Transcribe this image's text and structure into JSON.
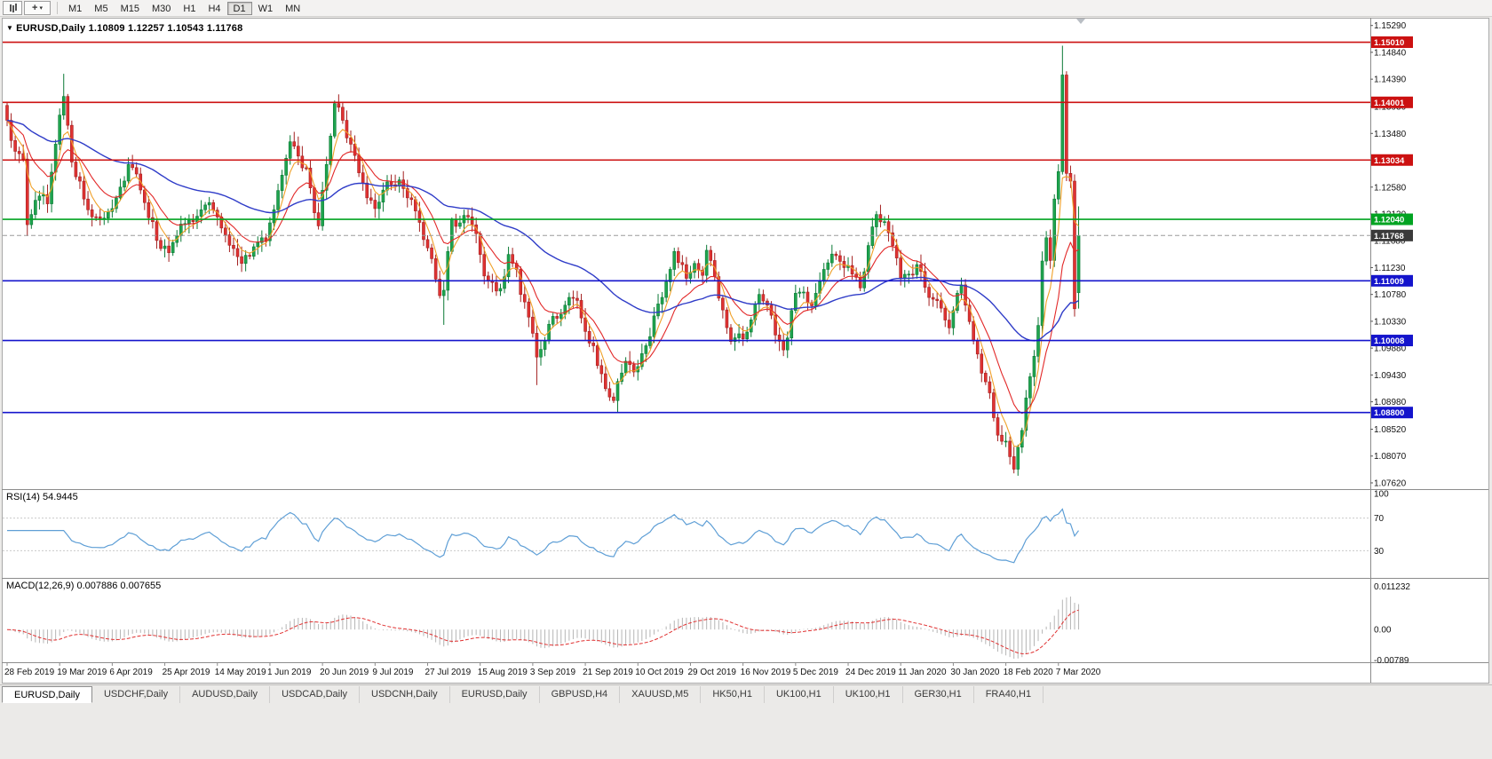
{
  "toolbar": {
    "timeframes": [
      "M1",
      "M5",
      "M15",
      "M30",
      "H1",
      "H4",
      "D1",
      "W1",
      "MN"
    ],
    "active_timeframe": "D1"
  },
  "quote_line": {
    "symbol": "EURUSD,Daily",
    "open": "1.10809",
    "high": "1.12257",
    "low": "1.10543",
    "close": "1.11768",
    "text": "EURUSD,Daily  1.10809 1.12257 1.10543 1.11768"
  },
  "indicators": {
    "rsi": {
      "label": "RSI(14) 54.9445",
      "period": 14,
      "value": "54.9445"
    },
    "macd": {
      "label": "MACD(12,26,9) 0.007886 0.007655",
      "values": "0.007886 0.007655"
    }
  },
  "tabs": {
    "active_index": 0,
    "items": [
      "EURUSD,Daily",
      "USDCHF,Daily",
      "AUDUSD,Daily",
      "USDCAD,Daily",
      "USDCNH,Daily",
      "EURUSD,Daily",
      "GBPUSD,H4",
      "XAUUSD,M5",
      "HK50,H1",
      "UK100,H1",
      "UK100,H1",
      "GER30,H1",
      "FRA40,H1"
    ]
  },
  "chart_data": {
    "type": "candlestick",
    "symbol": "EURUSD",
    "timeframe": "Daily",
    "ohlc_display": {
      "open": 1.10809,
      "high": 1.12257,
      "low": 1.10543,
      "close": 1.11768
    },
    "price_range": [
      1.0756,
      1.1536
    ],
    "price_ticks": [
      "1.15290",
      "1.14840",
      "1.14390",
      "1.13930",
      "1.13480",
      "1.13030",
      "1.12580",
      "1.12130",
      "1.11680",
      "1.11230",
      "1.10780",
      "1.10330",
      "1.09880",
      "1.09430",
      "1.08980",
      "1.08520",
      "1.08070",
      "1.07620"
    ],
    "date_ticks": [
      "28 Feb 2019",
      "19 Mar 2019",
      "6 Apr 2019",
      "25 Apr 2019",
      "14 May 2019",
      "1 Jun 2019",
      "20 Jun 2019",
      "9 Jul 2019",
      "27 Jul 2019",
      "15 Aug 2019",
      "3 Sep 2019",
      "21 Sep 2019",
      "10 Oct 2019",
      "29 Oct 2019",
      "16 Nov 2019",
      "5 Dec 2019",
      "24 Dec 2019",
      "11 Jan 2020",
      "30 Jan 2020",
      "18 Feb 2020",
      "7 Mar 2020"
    ],
    "date_tick_step": 13,
    "candle_count": 266,
    "close_keyframes": [
      [
        0,
        1.137
      ],
      [
        2,
        1.1318
      ],
      [
        4,
        1.1305
      ],
      [
        5,
        1.1195
      ],
      [
        6,
        1.1212
      ],
      [
        8,
        1.1243
      ],
      [
        10,
        1.123
      ],
      [
        12,
        1.133
      ],
      [
        14,
        1.141
      ],
      [
        16,
        1.13
      ],
      [
        18,
        1.1268
      ],
      [
        20,
        1.122
      ],
      [
        23,
        1.1205
      ],
      [
        26,
        1.1222
      ],
      [
        28,
        1.1258
      ],
      [
        30,
        1.1296
      ],
      [
        32,
        1.128
      ],
      [
        34,
        1.1232
      ],
      [
        36,
        1.12
      ],
      [
        38,
        1.1155
      ],
      [
        40,
        1.1148
      ],
      [
        43,
        1.1196
      ],
      [
        46,
        1.12
      ],
      [
        48,
        1.122
      ],
      [
        50,
        1.1232
      ],
      [
        52,
        1.1208
      ],
      [
        54,
        1.1178
      ],
      [
        56,
        1.1155
      ],
      [
        58,
        1.113
      ],
      [
        60,
        1.1142
      ],
      [
        62,
        1.1165
      ],
      [
        64,
        1.1168
      ],
      [
        66,
        1.122
      ],
      [
        68,
        1.1278
      ],
      [
        70,
        1.1334
      ],
      [
        72,
        1.131
      ],
      [
        74,
        1.129
      ],
      [
        76,
        1.1215
      ],
      [
        77,
        1.1193
      ],
      [
        79,
        1.1296
      ],
      [
        81,
        1.1398
      ],
      [
        83,
        1.137
      ],
      [
        85,
        1.133
      ],
      [
        87,
        1.1282
      ],
      [
        89,
        1.124
      ],
      [
        91,
        1.1222
      ],
      [
        93,
        1.1253
      ],
      [
        95,
        1.1262
      ],
      [
        97,
        1.127
      ],
      [
        99,
        1.124
      ],
      [
        101,
        1.1218
      ],
      [
        103,
        1.117
      ],
      [
        105,
        1.1138
      ],
      [
        107,
        1.1076
      ],
      [
        108,
        1.1085
      ],
      [
        109,
        1.115
      ],
      [
        110,
        1.1203
      ],
      [
        112,
        1.1198
      ],
      [
        114,
        1.1208
      ],
      [
        116,
        1.118
      ],
      [
        118,
        1.1109
      ],
      [
        120,
        1.1098
      ],
      [
        122,
        1.1088
      ],
      [
        124,
        1.1145
      ],
      [
        126,
        1.112
      ],
      [
        127,
        1.1078
      ],
      [
        129,
        1.104
      ],
      [
        131,
        1.0973
      ],
      [
        133,
        1.1
      ],
      [
        134,
        1.1028
      ],
      [
        136,
        1.1038
      ],
      [
        138,
        1.106
      ],
      [
        139,
        1.1073
      ],
      [
        141,
        1.1068
      ],
      [
        143,
        1.1016
      ],
      [
        145,
        1.0992
      ],
      [
        147,
        1.0945
      ],
      [
        148,
        1.092
      ],
      [
        150,
        1.09
      ],
      [
        151,
        1.0932
      ],
      [
        153,
        1.0966
      ],
      [
        155,
        1.0948
      ],
      [
        156,
        1.0957
      ],
      [
        158,
        1.0992
      ],
      [
        160,
        1.1042
      ],
      [
        162,
        1.1073
      ],
      [
        164,
        1.112
      ],
      [
        165,
        1.115
      ],
      [
        167,
        1.1128
      ],
      [
        168,
        1.1105
      ],
      [
        170,
        1.113
      ],
      [
        172,
        1.111
      ],
      [
        173,
        1.1152
      ],
      [
        175,
        1.1108
      ],
      [
        177,
        1.1052
      ],
      [
        179,
        1.0999
      ],
      [
        181,
        1.1012
      ],
      [
        183,
        1.1015
      ],
      [
        185,
        1.1062
      ],
      [
        186,
        1.1078
      ],
      [
        188,
        1.106
      ],
      [
        190,
        1.101
      ],
      [
        192,
        1.0985
      ],
      [
        193,
        1.1005
      ],
      [
        195,
        1.108
      ],
      [
        197,
        1.1082
      ],
      [
        199,
        1.1059
      ],
      [
        201,
        1.11
      ],
      [
        203,
        1.1131
      ],
      [
        205,
        1.1143
      ],
      [
        207,
        1.1123
      ],
      [
        209,
        1.1112
      ],
      [
        211,
        1.1089
      ],
      [
        213,
        1.116
      ],
      [
        215,
        1.1212
      ],
      [
        217,
        1.12
      ],
      [
        219,
        1.116
      ],
      [
        221,
        1.1106
      ],
      [
        223,
        1.1112
      ],
      [
        225,
        1.1128
      ],
      [
        227,
        1.109
      ],
      [
        229,
        1.107
      ],
      [
        231,
        1.1055
      ],
      [
        233,
        1.1022
      ],
      [
        235,
        1.108
      ],
      [
        236,
        1.1094
      ],
      [
        237,
        1.106
      ],
      [
        239,
        1.1
      ],
      [
        241,
        1.0946
      ],
      [
        243,
        1.0913
      ],
      [
        245,
        1.0842
      ],
      [
        247,
        1.0832
      ],
      [
        248,
        1.0806
      ],
      [
        249,
        1.0785
      ],
      [
        251,
        1.085
      ],
      [
        253,
        1.094
      ],
      [
        255,
        1.1026
      ],
      [
        256,
        1.1134
      ],
      [
        257,
        1.1173
      ],
      [
        258,
        1.1135
      ],
      [
        259,
        1.1238
      ],
      [
        260,
        1.1284
      ],
      [
        261,
        1.1446
      ],
      [
        262,
        1.1281
      ],
      [
        263,
        1.1268
      ],
      [
        264,
        1.1054
      ],
      [
        265,
        1.11768
      ]
    ],
    "candle_overrides": {
      "5": {
        "l": 1.1176
      },
      "14": {
        "h": 1.1448
      },
      "108": {
        "l": 1.1027
      },
      "131": {
        "l": 1.0926
      },
      "151": {
        "l": 1.0879
      },
      "249": {
        "l": 1.0778
      },
      "261": {
        "h": 1.1495
      },
      "265": {
        "o": 1.10809,
        "h": 1.12257,
        "l": 1.10543,
        "c": 1.11768
      }
    },
    "levels": [
      {
        "price": 1.1501,
        "label": "1.15010",
        "color": "#cc1111",
        "width": 1.6
      },
      {
        "price": 1.14001,
        "label": "1.14001",
        "color": "#cc1111",
        "width": 1.6
      },
      {
        "price": 1.13034,
        "label": "1.13034",
        "color": "#cc1111",
        "width": 1.6
      },
      {
        "price": 1.1204,
        "label": "1.12040",
        "color": "#00a321",
        "width": 1.6
      },
      {
        "price": 1.11009,
        "label": "1.11009",
        "color": "#1414cc",
        "width": 1.6
      },
      {
        "price": 1.10008,
        "label": "1.10008",
        "color": "#1414cc",
        "width": 1.6
      },
      {
        "price": 1.088,
        "label": "1.08800",
        "color": "#1414cc",
        "width": 1.6
      },
      {
        "price": 1.11768,
        "label": "1.11768",
        "color": "#9a9a9a",
        "badge_color": "#3a3a3a",
        "style": "bid",
        "width": 1
      }
    ],
    "moving_averages": [
      {
        "period": 5,
        "color": "#f0a028"
      },
      {
        "period": 13,
        "color": "#e22828"
      },
      {
        "period": 55,
        "color": "#2f3cc8"
      }
    ],
    "rsi": {
      "period": 14,
      "value": 54.9445,
      "line_color": "#5f9fd6",
      "bands": [
        70,
        30
      ],
      "scale_ticks": [
        {
          "v": 100,
          "label": "100"
        },
        {
          "v": 70,
          "label": "70"
        },
        {
          "v": 30,
          "label": "30"
        }
      ]
    },
    "macd": {
      "fast": 12,
      "slow": 26,
      "signal": 9,
      "values": [
        0.007886,
        0.007655
      ],
      "hist_color": "#b5b5b5",
      "signal_color": "#e03030",
      "scale_ticks": [
        {
          "v": 0.011232,
          "label": "0.011232"
        },
        {
          "v": 0,
          "label": "0.00"
        },
        {
          "v": -0.00789,
          "label": "-0.00789"
        }
      ]
    },
    "style": {
      "up_color": "#1fa44e",
      "up_border": "#0b7a36",
      "down_color": "#e03232",
      "down_border": "#a32020",
      "background": "#ffffff"
    }
  }
}
